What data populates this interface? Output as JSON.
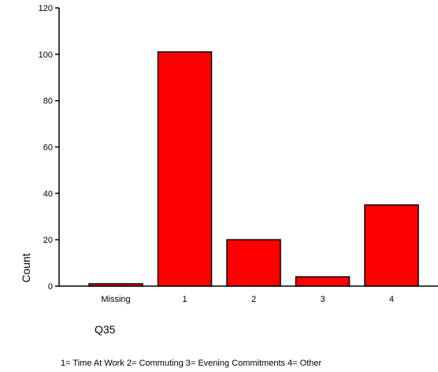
{
  "chart_data": {
    "type": "bar",
    "categories": [
      "Missing",
      "1",
      "2",
      "3",
      "4"
    ],
    "values": [
      1,
      101,
      20,
      4,
      35
    ],
    "title": "",
    "xlabel": "Q35",
    "ylabel": "Count",
    "ylim": [
      0,
      120
    ],
    "yticks": [
      0,
      20,
      40,
      60,
      80,
      100,
      120
    ],
    "grid": false,
    "bar_color": "#ff0000",
    "footnote": "1= Time At Work  2= Commuting   3= Evening Commitments  4= Other"
  }
}
